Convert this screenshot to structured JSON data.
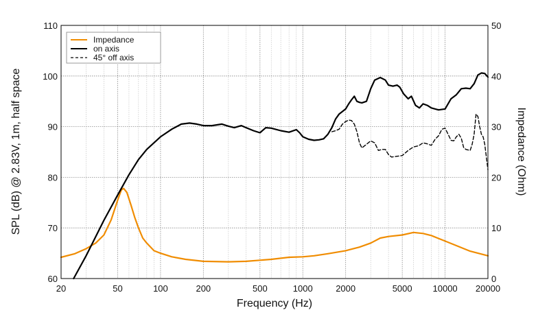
{
  "chart_data": {
    "type": "line",
    "xlabel": "Frequency (Hz)",
    "ylabel_left": "SPL (dB) @ 2.83V, 1m, half space",
    "ylabel_right": "Impedance (Ohm)",
    "xscale": "log",
    "xlim": [
      20,
      20000
    ],
    "ylim_left": [
      60,
      110
    ],
    "ylim_right": [
      0,
      50
    ],
    "grid": true,
    "legend_position": "top-left",
    "x_tick_labels": [
      "20",
      "50",
      "100",
      "200",
      "500",
      "1000",
      "2000",
      "5000",
      "10000",
      "20000"
    ],
    "x_tick_values": [
      20,
      50,
      100,
      200,
      500,
      1000,
      2000,
      5000,
      10000,
      20000
    ],
    "y_left_ticks": [
      60,
      70,
      80,
      90,
      100,
      110
    ],
    "y_right_ticks": [
      0,
      10,
      20,
      30,
      40,
      50
    ],
    "series": [
      {
        "name": "Impedance",
        "axis": "right",
        "color": "#f08c00",
        "style": "solid",
        "points": [
          [
            20,
            4.2
          ],
          [
            25,
            4.9
          ],
          [
            30,
            5.9
          ],
          [
            35,
            7
          ],
          [
            40,
            8.6
          ],
          [
            45,
            11.6
          ],
          [
            50,
            15.5
          ],
          [
            53,
            17.5
          ],
          [
            55,
            17.8
          ],
          [
            58,
            17
          ],
          [
            62,
            14.5
          ],
          [
            66,
            12
          ],
          [
            70,
            10
          ],
          [
            75,
            8
          ],
          [
            80,
            7
          ],
          [
            90,
            5.5
          ],
          [
            100,
            5
          ],
          [
            120,
            4.3
          ],
          [
            150,
            3.8
          ],
          [
            200,
            3.4
          ],
          [
            300,
            3.3
          ],
          [
            400,
            3.4
          ],
          [
            600,
            3.8
          ],
          [
            800,
            4.2
          ],
          [
            1000,
            4.3
          ],
          [
            1200,
            4.5
          ],
          [
            1500,
            4.9
          ],
          [
            2000,
            5.5
          ],
          [
            2500,
            6.2
          ],
          [
            3000,
            7
          ],
          [
            3500,
            8
          ],
          [
            4000,
            8.3
          ],
          [
            5000,
            8.6
          ],
          [
            6000,
            9.1
          ],
          [
            7000,
            8.9
          ],
          [
            8000,
            8.5
          ],
          [
            10000,
            7.4
          ],
          [
            12000,
            6.5
          ],
          [
            15000,
            5.4
          ],
          [
            20000,
            4.5
          ]
        ]
      },
      {
        "name": "on axis",
        "axis": "left",
        "color": "#000000",
        "style": "solid",
        "points": [
          [
            24.5,
            60
          ],
          [
            30,
            64.5
          ],
          [
            40,
            71.5
          ],
          [
            50,
            76.5
          ],
          [
            60,
            80.5
          ],
          [
            70,
            83.5
          ],
          [
            80,
            85.5
          ],
          [
            100,
            88
          ],
          [
            120,
            89.5
          ],
          [
            140,
            90.5
          ],
          [
            160,
            90.7
          ],
          [
            180,
            90.5
          ],
          [
            200,
            90.2
          ],
          [
            230,
            90.2
          ],
          [
            270,
            90.5
          ],
          [
            300,
            90.1
          ],
          [
            330,
            89.8
          ],
          [
            370,
            90.2
          ],
          [
            400,
            89.8
          ],
          [
            450,
            89.2
          ],
          [
            500,
            88.8
          ],
          [
            550,
            89.8
          ],
          [
            600,
            89.7
          ],
          [
            700,
            89.2
          ],
          [
            800,
            88.9
          ],
          [
            900,
            89.4
          ],
          [
            950,
            88.8
          ],
          [
            1000,
            88
          ],
          [
            1100,
            87.5
          ],
          [
            1200,
            87.3
          ],
          [
            1300,
            87.4
          ],
          [
            1400,
            87.6
          ],
          [
            1500,
            88.5
          ],
          [
            1600,
            89.8
          ],
          [
            1700,
            91.5
          ],
          [
            1800,
            92.5
          ],
          [
            1900,
            93
          ],
          [
            2000,
            93.5
          ],
          [
            2100,
            94.5
          ],
          [
            2200,
            95.3
          ],
          [
            2300,
            96
          ],
          [
            2400,
            95
          ],
          [
            2500,
            94.8
          ],
          [
            2600,
            94.7
          ],
          [
            2800,
            95
          ],
          [
            3000,
            97.5
          ],
          [
            3200,
            99.2
          ],
          [
            3500,
            99.7
          ],
          [
            3800,
            99.2
          ],
          [
            4000,
            98.2
          ],
          [
            4300,
            98
          ],
          [
            4600,
            98.2
          ],
          [
            4800,
            97.8
          ],
          [
            5100,
            96.5
          ],
          [
            5500,
            95.5
          ],
          [
            5800,
            96
          ],
          [
            6200,
            94.2
          ],
          [
            6600,
            93.7
          ],
          [
            7000,
            94.5
          ],
          [
            7500,
            94.2
          ],
          [
            8000,
            93.7
          ],
          [
            9000,
            93.3
          ],
          [
            10000,
            93.5
          ],
          [
            11000,
            95.5
          ],
          [
            12000,
            96.3
          ],
          [
            13000,
            97.5
          ],
          [
            14000,
            97.6
          ],
          [
            15000,
            97.5
          ],
          [
            16000,
            98.5
          ],
          [
            17000,
            100.2
          ],
          [
            18000,
            100.6
          ],
          [
            19000,
            100.5
          ],
          [
            20000,
            99.8
          ]
        ]
      },
      {
        "name": "45° off axis",
        "axis": "left",
        "color": "#000000",
        "style": "dashed",
        "points": [
          [
            1600,
            89
          ],
          [
            1700,
            89.2
          ],
          [
            1800,
            89.5
          ],
          [
            1900,
            90.5
          ],
          [
            2000,
            91
          ],
          [
            2100,
            91.3
          ],
          [
            2200,
            91.2
          ],
          [
            2300,
            90.5
          ],
          [
            2400,
            89
          ],
          [
            2500,
            86.8
          ],
          [
            2600,
            85.8
          ],
          [
            2800,
            86.5
          ],
          [
            3000,
            87.2
          ],
          [
            3200,
            86.8
          ],
          [
            3400,
            85.3
          ],
          [
            3600,
            85.5
          ],
          [
            3800,
            85.5
          ],
          [
            4000,
            84.5
          ],
          [
            4200,
            84
          ],
          [
            4500,
            84.1
          ],
          [
            5000,
            84.3
          ],
          [
            5500,
            85.3
          ],
          [
            6000,
            86
          ],
          [
            6500,
            86.2
          ],
          [
            7000,
            86.8
          ],
          [
            7500,
            86.6
          ],
          [
            8000,
            86.3
          ],
          [
            8500,
            87.5
          ],
          [
            9000,
            88.2
          ],
          [
            9500,
            89.5
          ],
          [
            10000,
            89.7
          ],
          [
            10500,
            88.5
          ],
          [
            11000,
            87.3
          ],
          [
            11500,
            87.2
          ],
          [
            12000,
            88
          ],
          [
            12500,
            88.5
          ],
          [
            13000,
            87.7
          ],
          [
            13500,
            85.9
          ],
          [
            14000,
            85.5
          ],
          [
            15000,
            85.3
          ],
          [
            15500,
            86.5
          ],
          [
            16000,
            88.5
          ],
          [
            16500,
            92.5
          ],
          [
            17000,
            92
          ],
          [
            17500,
            90
          ],
          [
            18000,
            88.5
          ],
          [
            18500,
            88
          ],
          [
            19000,
            86.5
          ],
          [
            20000,
            81.5
          ]
        ]
      }
    ]
  }
}
